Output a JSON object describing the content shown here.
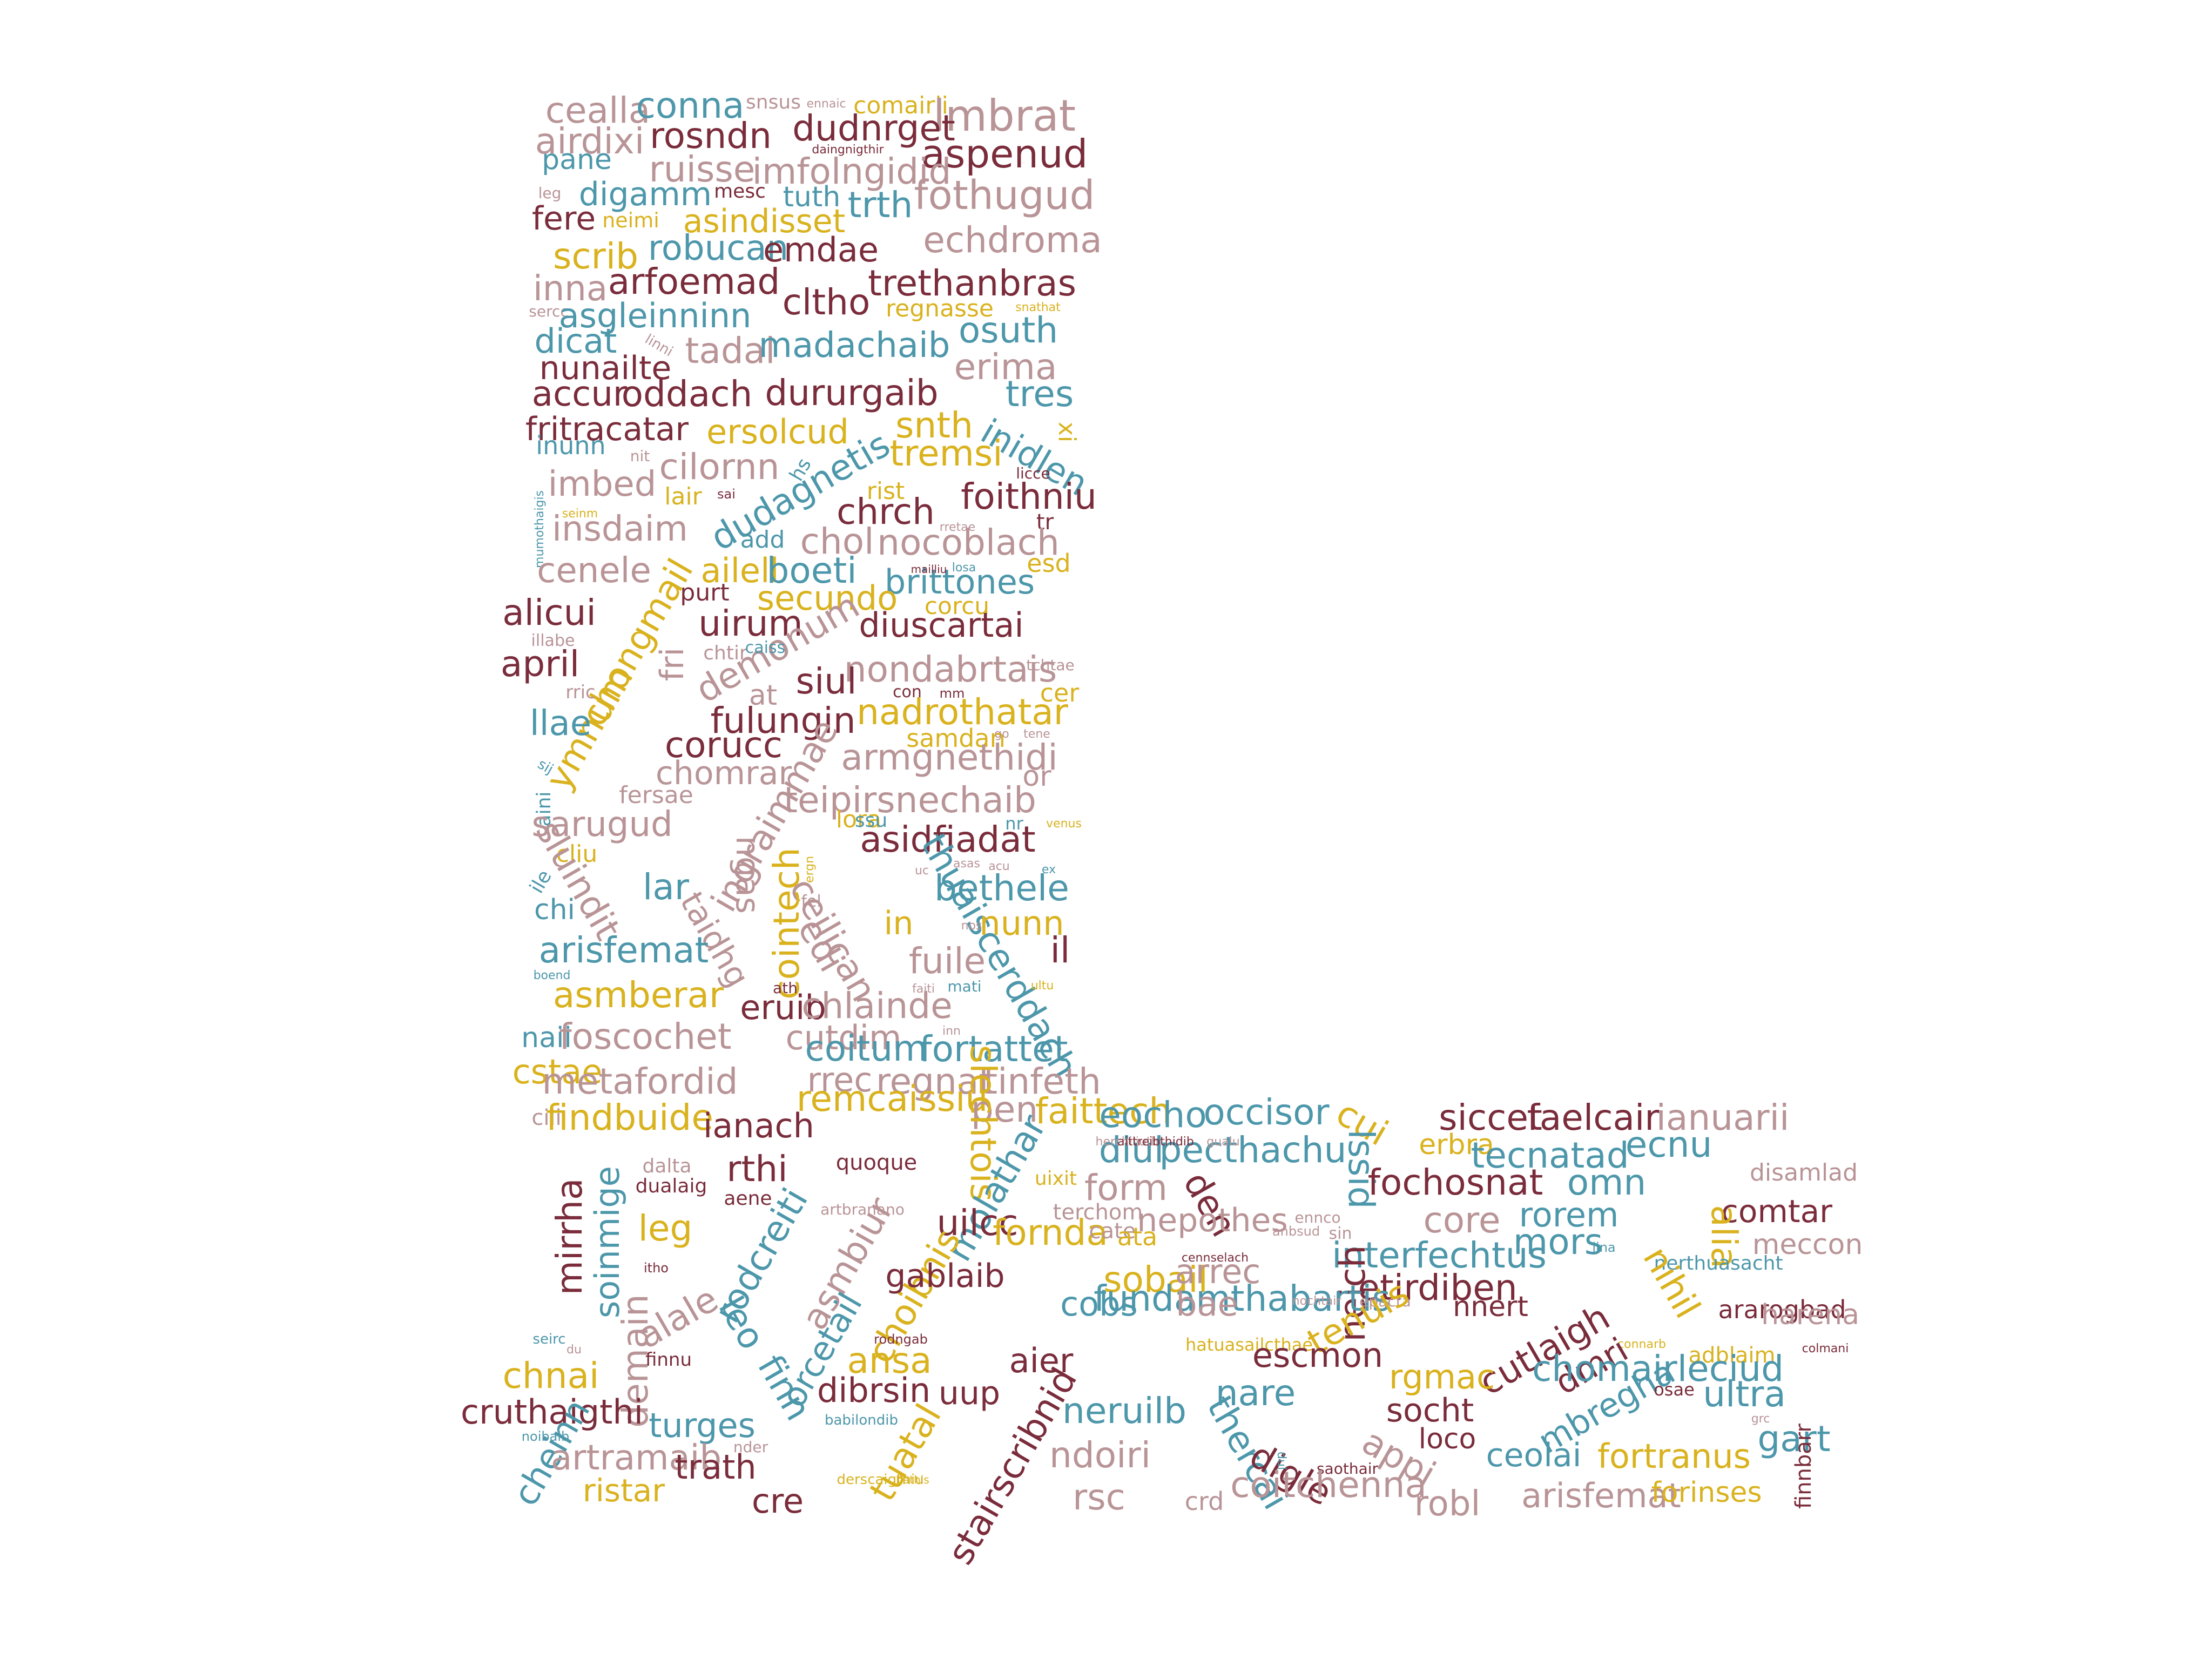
{
  "palette": {
    "rose": "#b99497",
    "teal": "#4d97ab",
    "maroon": "#7a2c3b",
    "gold": "#d9b21e"
  },
  "words": [
    "cealla",
    "conna",
    "snsus",
    "ennaic",
    "comairli",
    "lmbrat",
    "airdixi",
    "rosndn",
    "dudnrget",
    "daingnigthir",
    "aspenud",
    "pane",
    "ruisse",
    "imfolngidid",
    "fothugud",
    "digamm",
    "mesc",
    "tuth",
    "trth",
    "leg",
    "fere",
    "neimi",
    "asindisset",
    "echdroma",
    "robucan",
    "emdae",
    "scrib",
    "arfoemad",
    "cltho",
    "trethanbras",
    "inna",
    "regnasse",
    "sercc",
    "snathat",
    "asgleinninn",
    "tadal",
    "madachaib",
    "osuth",
    "dicat",
    "linni",
    "nunailte",
    "erima",
    "accur",
    "oddach",
    "dururgaib",
    "tres",
    "fritracatar",
    "ersolcud",
    "snth",
    "inidlen",
    "xi",
    "inunn",
    "nit",
    "tremsi",
    "cilornn",
    "hs",
    "licce",
    "imbed",
    "dudagnetis",
    "rist",
    "foithniu",
    "lair",
    "sai",
    "seinm",
    "mumothaigis",
    "insdaim",
    "chrch",
    "tr",
    "chol",
    "nocoblach",
    "add",
    "rretae",
    "cenele",
    "ailell",
    "boeti",
    "esd",
    "brittones",
    "mailliu",
    "losa",
    "chongmail",
    "secundo",
    "purt",
    "corcu",
    "alicui",
    "uirum",
    "diuscartai",
    "illabe",
    "ymnum",
    "fri",
    "demonum",
    "chtir",
    "caiss",
    "april",
    "nondabrtais",
    "rric",
    "tchtae",
    "at",
    "siul",
    "con",
    "mm",
    "cer",
    "llae",
    "fulungin",
    "nadrothatar",
    "corucc",
    "samdan",
    "tene",
    "go",
    "sij",
    "chomrar",
    "armgnethidi",
    "aini",
    "ingraimmae",
    "or",
    "fersae",
    "teipirsnechaib",
    "sarugud",
    "venus",
    "cliu",
    "lora",
    "ssu",
    "nr",
    "sluindit",
    "asidfiadat",
    "ile",
    "ngas",
    "ergn",
    "asas",
    "acu",
    "ex",
    "uc",
    "taidhg",
    "ceilican",
    "thuaiscerddach",
    "bethele",
    "chi",
    "lar",
    "cointech",
    "fel",
    "nunn",
    "in",
    "nos",
    "arisfemat",
    "edi",
    "boend",
    "il",
    "fuile",
    "ath",
    "faiti",
    "mati",
    "asmberar",
    "eruib",
    "chlainde",
    "ultu",
    "naii",
    "foscochet",
    "cutdim",
    "inn",
    "fortattet",
    "cstae",
    "coitum",
    "metafordid",
    "rrec",
    "regnat",
    "remcaissiu",
    "tinfeth",
    "pen",
    "faittech",
    "eocho",
    "occisor",
    "cui",
    "siccet",
    "faelcair",
    "ianuarii",
    "cili",
    "findbuide",
    "ianach",
    "slechtois",
    "quoque",
    "diul",
    "pecthachu",
    "lssid",
    "erbra",
    "tecnatad",
    "ecnu",
    "dalta",
    "dualaig",
    "rthi",
    "uixit",
    "herchiliuth",
    "aittreibthidib",
    "gualu",
    "disamlad",
    "mirrha",
    "soinmige",
    "molathar",
    "form",
    "den",
    "fochosnat",
    "omn",
    "leg",
    "aene",
    "asmbiur",
    "artbranano",
    "uilcc",
    "terchom",
    "nepothes",
    "core",
    "rorem",
    "comtar",
    "rodcreiti",
    "fornda",
    "cate",
    "ennco",
    "interfechtus",
    "mors",
    "alia",
    "meccon",
    "itho",
    "choibnis",
    "ata",
    "anbsud",
    "sin",
    "lina",
    "nerthuasacht",
    "gablaib",
    "cennselach",
    "sobail",
    "arrec",
    "neich",
    "etirdiben",
    "nihil",
    "ararogbad",
    "alale",
    "leo",
    "orcetail",
    "fundamthabartis",
    "cobs",
    "bae",
    "nochtair",
    "epacta",
    "nnert",
    "harena",
    "finn",
    "tenuis",
    "adblaim",
    "demain",
    "seirc",
    "du",
    "rodngab",
    "hatuasailcthae",
    "connarb",
    "cutlaigh",
    "dmri",
    "chnai",
    "finnu",
    "ansa",
    "aier",
    "escmon",
    "rgmac",
    "chomairleciud",
    "colmani",
    "cruthaigthi",
    "dibrsin",
    "uup",
    "nare",
    "mbregha",
    "ultra",
    "grc",
    "neruilb",
    "socht",
    "osae",
    "cheinn",
    "turges",
    "babilondib",
    "noibaib",
    "gart",
    "artramaib",
    "nder",
    "tuatal",
    "stairscribnid",
    "ndoiri",
    "thercai",
    "digle",
    "appi",
    "loco",
    "ceolai",
    "fortranus",
    "finnbarr",
    "trath",
    "derscaigthiu",
    "bathis",
    "saothair",
    "dul",
    "ristar",
    "coitchenna",
    "arisfemat",
    "forinses",
    "cre",
    "rsc",
    "crd",
    "robl"
  ]
}
